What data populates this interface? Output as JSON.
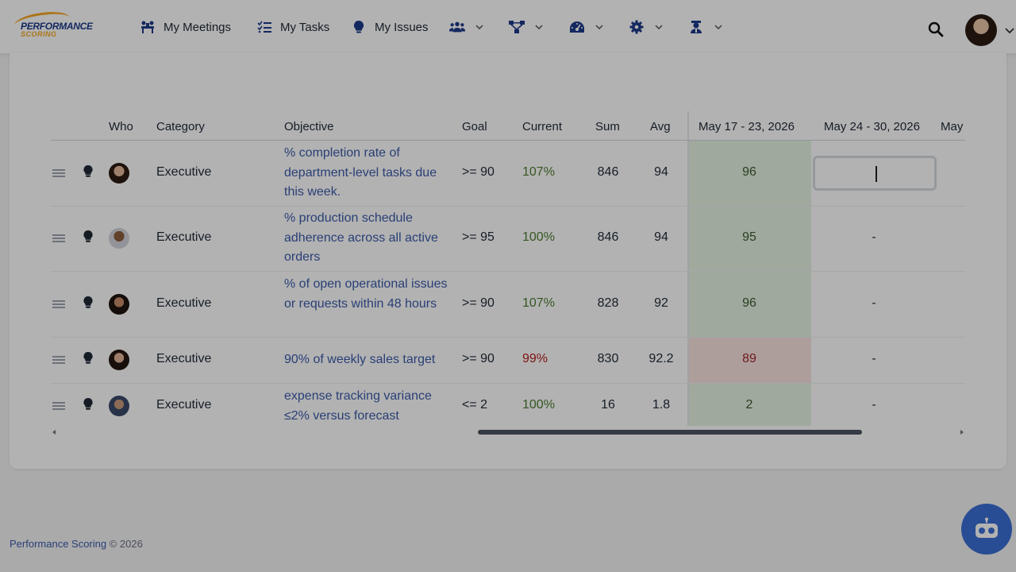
{
  "brand": {
    "logo_line1": "PERFORMANCE",
    "logo_line2": "SCORING"
  },
  "nav": {
    "items": [
      {
        "label": "My Meetings",
        "icon": "meetings-icon"
      },
      {
        "label": "My Tasks",
        "icon": "tasks-icon"
      },
      {
        "label": "My Issues",
        "icon": "lightbulb-icon"
      }
    ],
    "dropdowns": [
      "team-icon",
      "org-chart-icon",
      "dashboard-icon",
      "settings-icon",
      "coach-icon"
    ]
  },
  "table": {
    "headers": {
      "who": "Who",
      "category": "Category",
      "objective": "Objective",
      "goal": "Goal",
      "current": "Current",
      "sum": "Sum",
      "avg": "Avg",
      "week1": "May 17 - 23, 2026",
      "week2": "May 24 - 30, 2026",
      "week3": "May"
    },
    "rows": [
      {
        "category": "Executive",
        "objective": "% completion rate of department-level tasks due this week.",
        "goal": ">= 90",
        "current": "107%",
        "current_status": "good",
        "sum": "846",
        "avg": "94",
        "week1": "96",
        "week1_status": "good",
        "week2": ""
      },
      {
        "category": "Executive",
        "objective": "% production schedule adherence across all active orders",
        "goal": ">= 95",
        "current": "100%",
        "current_status": "good",
        "sum": "846",
        "avg": "94",
        "week1": "95",
        "week1_status": "good",
        "week2": "-"
      },
      {
        "category": "Executive",
        "objective": "% of open operational issues or requests within 48 hours",
        "goal": ">= 90",
        "current": "107%",
        "current_status": "good",
        "sum": "828",
        "avg": "92",
        "week1": "96",
        "week1_status": "good",
        "week2": "-"
      },
      {
        "category": "Executive",
        "objective": "90% of weekly sales target",
        "goal": ">= 90",
        "current": "99%",
        "current_status": "bad",
        "sum": "830",
        "avg": "92.2",
        "week1": "89",
        "week1_status": "bad",
        "week2": "-"
      },
      {
        "category": "Executive",
        "objective": "expense tracking variance ≤2% versus forecast",
        "goal": "<= 2",
        "current": "100%",
        "current_status": "good",
        "sum": "16",
        "avg": "1.8",
        "week1": "2",
        "week1_status": "good",
        "week2": "-"
      }
    ]
  },
  "colors": {
    "good_bg": "#e6f3e2",
    "bad_bg": "#f8e2e0",
    "link": "#3b5ba9",
    "accent": "#3b6fd4"
  },
  "footer": {
    "brand": "Performance Scoring",
    "copyright": " © 2026"
  }
}
